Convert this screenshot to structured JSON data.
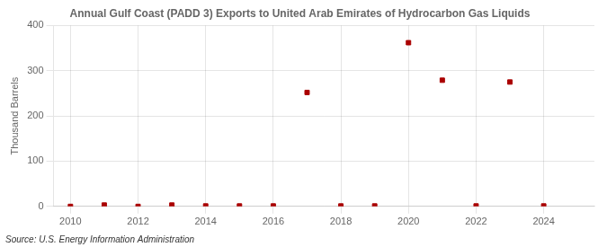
{
  "chart_data": {
    "type": "scatter",
    "title": "Annual Gulf Coast (PADD 3) Exports to United Arab Emirates of Hydrocarbon Gas Liquids",
    "ylabel": "Thousand Barrels",
    "annotation": "Source: U.S. Energy Information Administration",
    "x": [
      2010,
      2011,
      2012,
      2013,
      2014,
      2015,
      2016,
      2017,
      2018,
      2019,
      2020,
      2021,
      2022,
      2023,
      2024
    ],
    "values": [
      0,
      3,
      0,
      3,
      1,
      1,
      1,
      252,
      1,
      1,
      362,
      279,
      1,
      275,
      1
    ],
    "color": "#aa0000",
    "marker": "square",
    "xlim": [
      2009.5,
      2025.5
    ],
    "xticks": [
      2010,
      2012,
      2014,
      2016,
      2018,
      2020,
      2022,
      2024
    ],
    "ylim": [
      0,
      400
    ],
    "yticks": [
      0,
      100,
      200,
      300,
      400
    ],
    "grid": true
  }
}
